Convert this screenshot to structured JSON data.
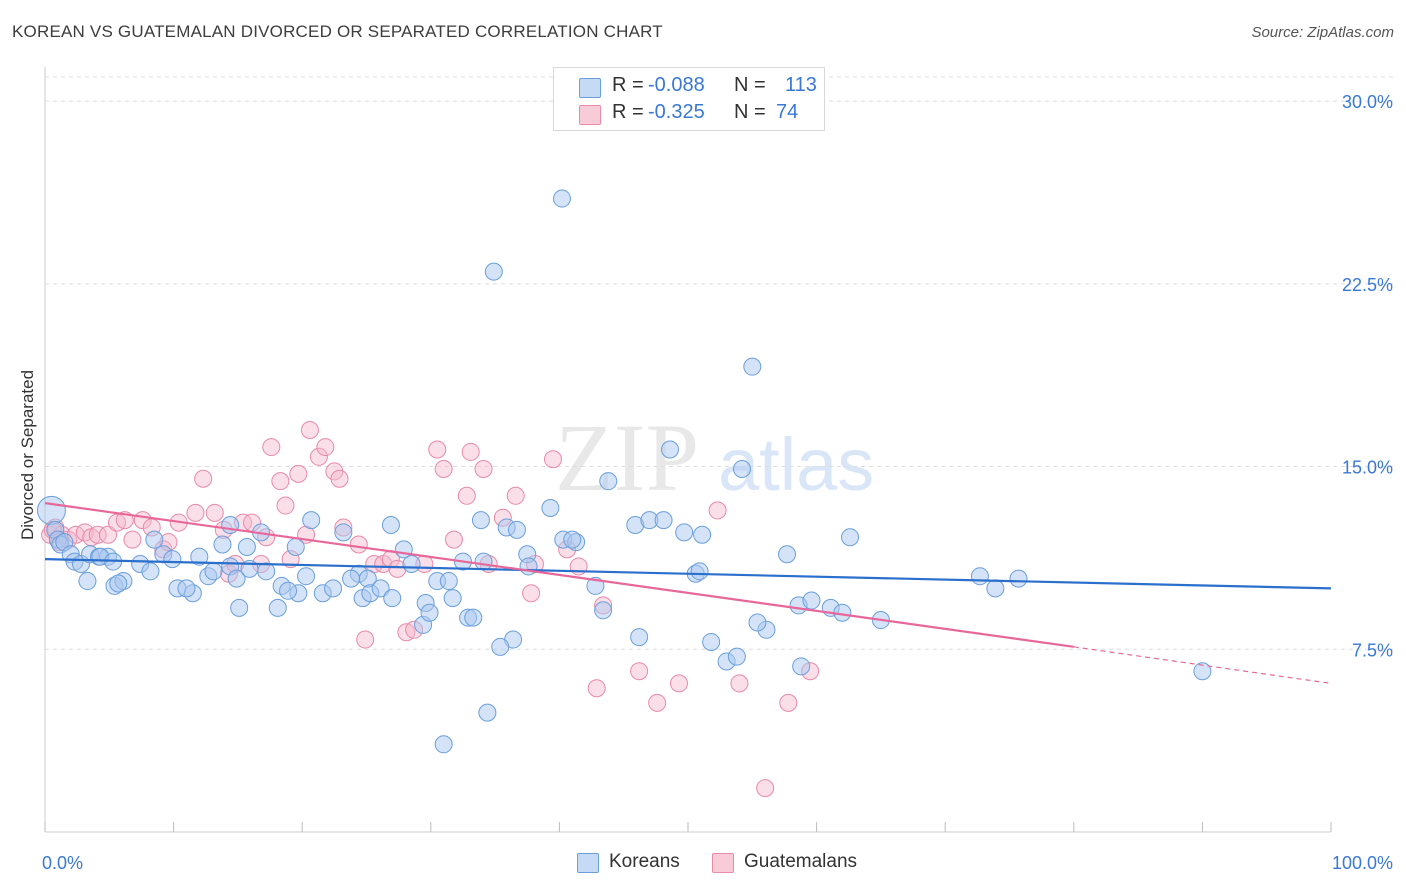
{
  "title": "KOREAN VS GUATEMALAN DIVORCED OR SEPARATED CORRELATION CHART",
  "source": "Source: ZipAtlas.com",
  "watermark": {
    "zip": "ZIP",
    "atlas": "atlas"
  },
  "legend": {
    "r_label": "R =",
    "n_label": "N =",
    "koreans": {
      "r": "-0.088",
      "n": "113"
    },
    "guatemalans": {
      "r": "-0.325",
      "n": "74"
    }
  },
  "colors": {
    "blue_fill": "#a9c8ef",
    "blue_stroke": "#6a9fdc",
    "blue_line": "#2a6fcc",
    "pink_fill": "#f5b8cb",
    "pink_stroke": "#e88aa8",
    "pink_line": "#e8679a",
    "axis_text": "#3a78d4",
    "grid": "#dddddd"
  },
  "chart_data": {
    "type": "scatter",
    "title": "KOREAN VS GUATEMALAN DIVORCED OR SEPARATED CORRELATION CHART",
    "xlabel": "",
    "ylabel": "Divorced or Separated",
    "xlim": [
      0,
      100
    ],
    "ylim": [
      0,
      31.4
    ],
    "x_tick_labels": [
      "0.0%",
      "100.0%"
    ],
    "y_ticks": [
      7.5,
      15.0,
      22.5,
      30.0
    ],
    "y_tick_labels": [
      "7.5%",
      "15.0%",
      "22.5%",
      "30.0%"
    ],
    "grid": "horizontal dashed",
    "series": [
      {
        "name": "Koreans",
        "color": "#6a9fdc",
        "trend": {
          "x": [
            0,
            100
          ],
          "y": [
            11.2,
            10.0
          ]
        },
        "points": [
          [
            0.5,
            13.2
          ],
          [
            0.8,
            12.4
          ],
          [
            1.0,
            12.0
          ],
          [
            1.2,
            11.8
          ],
          [
            1.5,
            11.9
          ],
          [
            2.0,
            11.4
          ],
          [
            2.3,
            11.1
          ],
          [
            2.8,
            11.0
          ],
          [
            3.5,
            11.4
          ],
          [
            4.2,
            11.3
          ],
          [
            4.9,
            11.3
          ],
          [
            3.3,
            10.3
          ],
          [
            4.3,
            11.3
          ],
          [
            5.4,
            10.1
          ],
          [
            6.1,
            10.3
          ],
          [
            5.7,
            10.2
          ],
          [
            5.3,
            11.1
          ],
          [
            7.4,
            11.0
          ],
          [
            8.2,
            10.7
          ],
          [
            8.5,
            12.0
          ],
          [
            9.2,
            11.4
          ],
          [
            10.3,
            10.0
          ],
          [
            11.5,
            9.8
          ],
          [
            12.7,
            10.5
          ],
          [
            11.0,
            10.0
          ],
          [
            12.0,
            11.3
          ],
          [
            13.1,
            10.7
          ],
          [
            14.4,
            10.9
          ],
          [
            14.9,
            10.4
          ],
          [
            14.4,
            12.6
          ],
          [
            15.9,
            10.8
          ],
          [
            15.1,
            9.2
          ],
          [
            15.7,
            11.7
          ],
          [
            17.2,
            10.7
          ],
          [
            16.8,
            12.3
          ],
          [
            18.4,
            10.1
          ],
          [
            18.1,
            9.2
          ],
          [
            19.5,
            11.7
          ],
          [
            19.7,
            9.8
          ],
          [
            20.3,
            10.5
          ],
          [
            20.7,
            12.8
          ],
          [
            21.6,
            9.8
          ],
          [
            22.4,
            10.0
          ],
          [
            23.2,
            12.3
          ],
          [
            24.4,
            10.6
          ],
          [
            24.7,
            9.6
          ],
          [
            25.1,
            10.4
          ],
          [
            25.3,
            9.8
          ],
          [
            26.1,
            10.0
          ],
          [
            26.9,
            12.6
          ],
          [
            27.9,
            11.6
          ],
          [
            28.5,
            11.0
          ],
          [
            29.4,
            8.5
          ],
          [
            29.6,
            9.4
          ],
          [
            29.9,
            9.0
          ],
          [
            30.5,
            10.3
          ],
          [
            31.4,
            10.3
          ],
          [
            31.7,
            9.6
          ],
          [
            32.5,
            11.1
          ],
          [
            32.9,
            8.8
          ],
          [
            33.3,
            8.8
          ],
          [
            34.1,
            11.1
          ],
          [
            33.9,
            12.8
          ],
          [
            34.9,
            23.0
          ],
          [
            35.9,
            12.5
          ],
          [
            36.7,
            12.4
          ],
          [
            36.4,
            7.9
          ],
          [
            35.4,
            7.6
          ],
          [
            37.5,
            11.4
          ],
          [
            37.6,
            10.9
          ],
          [
            39.3,
            13.3
          ],
          [
            40.3,
            12.0
          ],
          [
            40.2,
            26.0
          ],
          [
            41.3,
            11.9
          ],
          [
            42.8,
            10.1
          ],
          [
            43.8,
            14.4
          ],
          [
            43.4,
            9.1
          ],
          [
            45.9,
            12.6
          ],
          [
            46.2,
            8.0
          ],
          [
            47.0,
            12.8
          ],
          [
            48.1,
            12.8
          ],
          [
            48.6,
            15.7
          ],
          [
            49.7,
            12.3
          ],
          [
            50.6,
            10.6
          ],
          [
            51.1,
            12.2
          ],
          [
            50.9,
            10.7
          ],
          [
            51.8,
            7.8
          ],
          [
            53.0,
            7.0
          ],
          [
            53.8,
            7.2
          ],
          [
            54.2,
            14.9
          ],
          [
            55.0,
            19.1
          ],
          [
            56.1,
            8.3
          ],
          [
            55.4,
            8.6
          ],
          [
            58.6,
            9.3
          ],
          [
            57.7,
            11.4
          ],
          [
            58.8,
            6.8
          ],
          [
            59.6,
            9.5
          ],
          [
            61.1,
            9.2
          ],
          [
            62.0,
            9.0
          ],
          [
            62.6,
            12.1
          ],
          [
            65.0,
            8.7
          ],
          [
            72.7,
            10.5
          ],
          [
            73.9,
            10.0
          ],
          [
            75.7,
            10.4
          ],
          [
            90.0,
            6.6
          ],
          [
            31.0,
            3.6
          ],
          [
            34.4,
            4.9
          ],
          [
            27.0,
            9.6
          ],
          [
            23.8,
            10.4
          ],
          [
            13.8,
            11.8
          ],
          [
            9.9,
            11.2
          ],
          [
            18.9,
            9.9
          ],
          [
            41.0,
            12.0
          ]
        ]
      },
      {
        "name": "Guatemalans",
        "color": "#e88aa8",
        "trend": {
          "x": [
            0,
            80
          ],
          "y": [
            13.5,
            7.6
          ]
        },
        "trend_dashed": {
          "x": [
            80,
            100
          ],
          "y": [
            7.6,
            6.1
          ]
        },
        "points": [
          [
            0.4,
            12.2
          ],
          [
            0.8,
            12.5
          ],
          [
            1.3,
            12.2
          ],
          [
            1.8,
            12.0
          ],
          [
            2.4,
            12.2
          ],
          [
            3.1,
            12.3
          ],
          [
            3.6,
            12.1
          ],
          [
            4.1,
            12.2
          ],
          [
            4.9,
            12.2
          ],
          [
            5.6,
            12.7
          ],
          [
            6.2,
            12.8
          ],
          [
            6.8,
            12.0
          ],
          [
            7.6,
            12.8
          ],
          [
            8.3,
            12.5
          ],
          [
            9.2,
            11.6
          ],
          [
            9.6,
            11.9
          ],
          [
            10.4,
            12.7
          ],
          [
            11.7,
            13.1
          ],
          [
            12.3,
            14.5
          ],
          [
            13.2,
            13.1
          ],
          [
            13.9,
            12.4
          ],
          [
            14.3,
            10.6
          ],
          [
            14.8,
            11.0
          ],
          [
            15.4,
            12.7
          ],
          [
            16.1,
            12.7
          ],
          [
            16.8,
            11.0
          ],
          [
            17.2,
            12.1
          ],
          [
            17.6,
            15.8
          ],
          [
            18.3,
            14.4
          ],
          [
            18.7,
            13.4
          ],
          [
            19.1,
            11.2
          ],
          [
            19.7,
            14.7
          ],
          [
            20.3,
            12.2
          ],
          [
            20.6,
            16.5
          ],
          [
            21.3,
            15.4
          ],
          [
            21.8,
            15.8
          ],
          [
            22.5,
            14.8
          ],
          [
            22.9,
            14.5
          ],
          [
            23.2,
            12.5
          ],
          [
            24.4,
            11.8
          ],
          [
            24.9,
            7.9
          ],
          [
            25.6,
            11.0
          ],
          [
            26.3,
            11.0
          ],
          [
            26.9,
            11.2
          ],
          [
            27.4,
            10.8
          ],
          [
            28.1,
            8.2
          ],
          [
            28.7,
            8.3
          ],
          [
            29.5,
            11.0
          ],
          [
            30.5,
            15.7
          ],
          [
            31.0,
            14.9
          ],
          [
            31.8,
            12.0
          ],
          [
            32.8,
            13.8
          ],
          [
            33.1,
            15.6
          ],
          [
            34.1,
            14.9
          ],
          [
            34.5,
            11.0
          ],
          [
            35.6,
            12.9
          ],
          [
            36.6,
            13.8
          ],
          [
            37.8,
            9.8
          ],
          [
            38.1,
            11.0
          ],
          [
            39.5,
            15.3
          ],
          [
            40.6,
            11.6
          ],
          [
            41.5,
            10.9
          ],
          [
            42.9,
            5.9
          ],
          [
            43.4,
            9.3
          ],
          [
            46.2,
            6.6
          ],
          [
            47.6,
            5.3
          ],
          [
            49.3,
            6.1
          ],
          [
            52.3,
            13.2
          ],
          [
            54.0,
            6.1
          ],
          [
            56.0,
            1.8
          ],
          [
            57.8,
            5.3
          ],
          [
            59.5,
            6.6
          ],
          [
            0.6,
            12.4
          ],
          [
            1.1,
            11.9
          ]
        ]
      }
    ]
  },
  "bottom_legend": [
    "Koreans",
    "Guatemalans"
  ]
}
